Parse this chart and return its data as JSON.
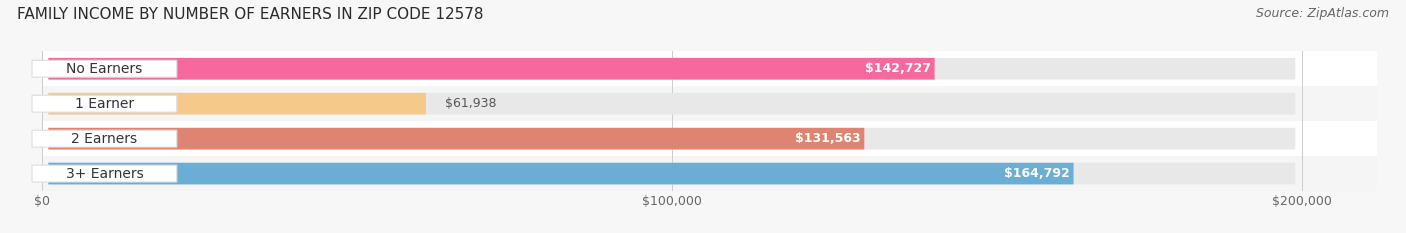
{
  "title": "FAMILY INCOME BY NUMBER OF EARNERS IN ZIP CODE 12578",
  "source": "Source: ZipAtlas.com",
  "categories": [
    "No Earners",
    "1 Earner",
    "2 Earners",
    "3+ Earners"
  ],
  "values": [
    142727,
    61938,
    131563,
    164792
  ],
  "bar_colors": [
    "#f5699e",
    "#f5c98a",
    "#e08472",
    "#6aaed6"
  ],
  "bar_bg_color": "#e8e8e8",
  "xlim": [
    0,
    200000
  ],
  "xticks": [
    0,
    100000,
    200000
  ],
  "xtick_labels": [
    "$0",
    "$100,000",
    "$200,000"
  ],
  "title_fontsize": 11,
  "source_fontsize": 9,
  "bar_label_fontsize": 9,
  "cat_label_fontsize": 10,
  "background_color": "#f7f7f7",
  "row_bg_colors": [
    "#ffffff",
    "#fafafa",
    "#ffffff",
    "#fafafa"
  ],
  "value_labels": [
    "$142,727",
    "$61,938",
    "$131,563",
    "$164,792"
  ],
  "value_label_colors": [
    "white",
    "#555555",
    "white",
    "white"
  ]
}
